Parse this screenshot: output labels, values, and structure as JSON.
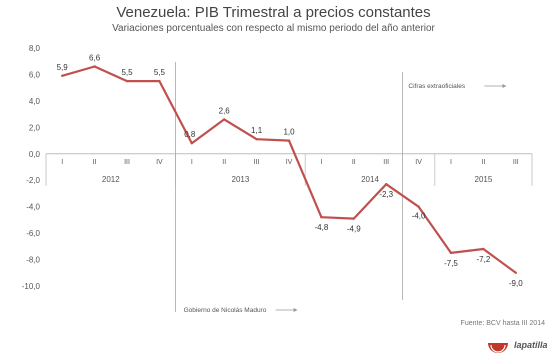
{
  "chart_data": {
    "type": "line",
    "title": "Venezuela: PIB Trimestral a precios constantes",
    "subtitle": "Variaciones porcentuales con respecto al mismo periodo del año anterior",
    "xlabel": "",
    "ylabel": "",
    "categories": [
      "I",
      "II",
      "III",
      "IV",
      "I",
      "II",
      "III",
      "IV",
      "I",
      "II",
      "III",
      "IV",
      "I",
      "II",
      "III"
    ],
    "years": [
      {
        "label": "2012",
        "quarters": 4
      },
      {
        "label": "2013",
        "quarters": 4
      },
      {
        "label": "2014",
        "quarters": 4
      },
      {
        "label": "2015",
        "quarters": 3
      }
    ],
    "values": [
      5.9,
      6.6,
      5.5,
      5.5,
      0.8,
      2.6,
      1.1,
      1.0,
      -4.8,
      -4.9,
      -2.3,
      -4.0,
      -7.5,
      -7.2,
      -9.0
    ],
    "value_labels": [
      "5,9",
      "6,6",
      "5,5",
      "5,5",
      "0,8",
      "2,6",
      "1,1",
      "1,0",
      "-4,8",
      "-4,9",
      "-2,3",
      "-4,0",
      "-7,5",
      "-7,2",
      "-9,0"
    ],
    "ylim": [
      -10,
      8
    ],
    "yticks": [
      8,
      6,
      4,
      2,
      0,
      -2,
      -4,
      -6,
      -8,
      -10
    ],
    "ytick_labels": [
      "8,0",
      "6,0",
      "4,0",
      "2,0",
      "0,0",
      "-2,0",
      "-4,0",
      "-6,0",
      "-8,0",
      "-10,0"
    ],
    "grid": false,
    "line_color": "#c0504d",
    "annotations": [
      {
        "text": "Gobierno de Nicolás Maduro",
        "after_index": 3
      },
      {
        "text": "Cifras extraoficiales",
        "after_index": 10
      }
    ],
    "source": "Fuente: BCV hasta III 2014"
  },
  "logo": {
    "text": "lapatilla",
    "color": "#c0392b"
  }
}
